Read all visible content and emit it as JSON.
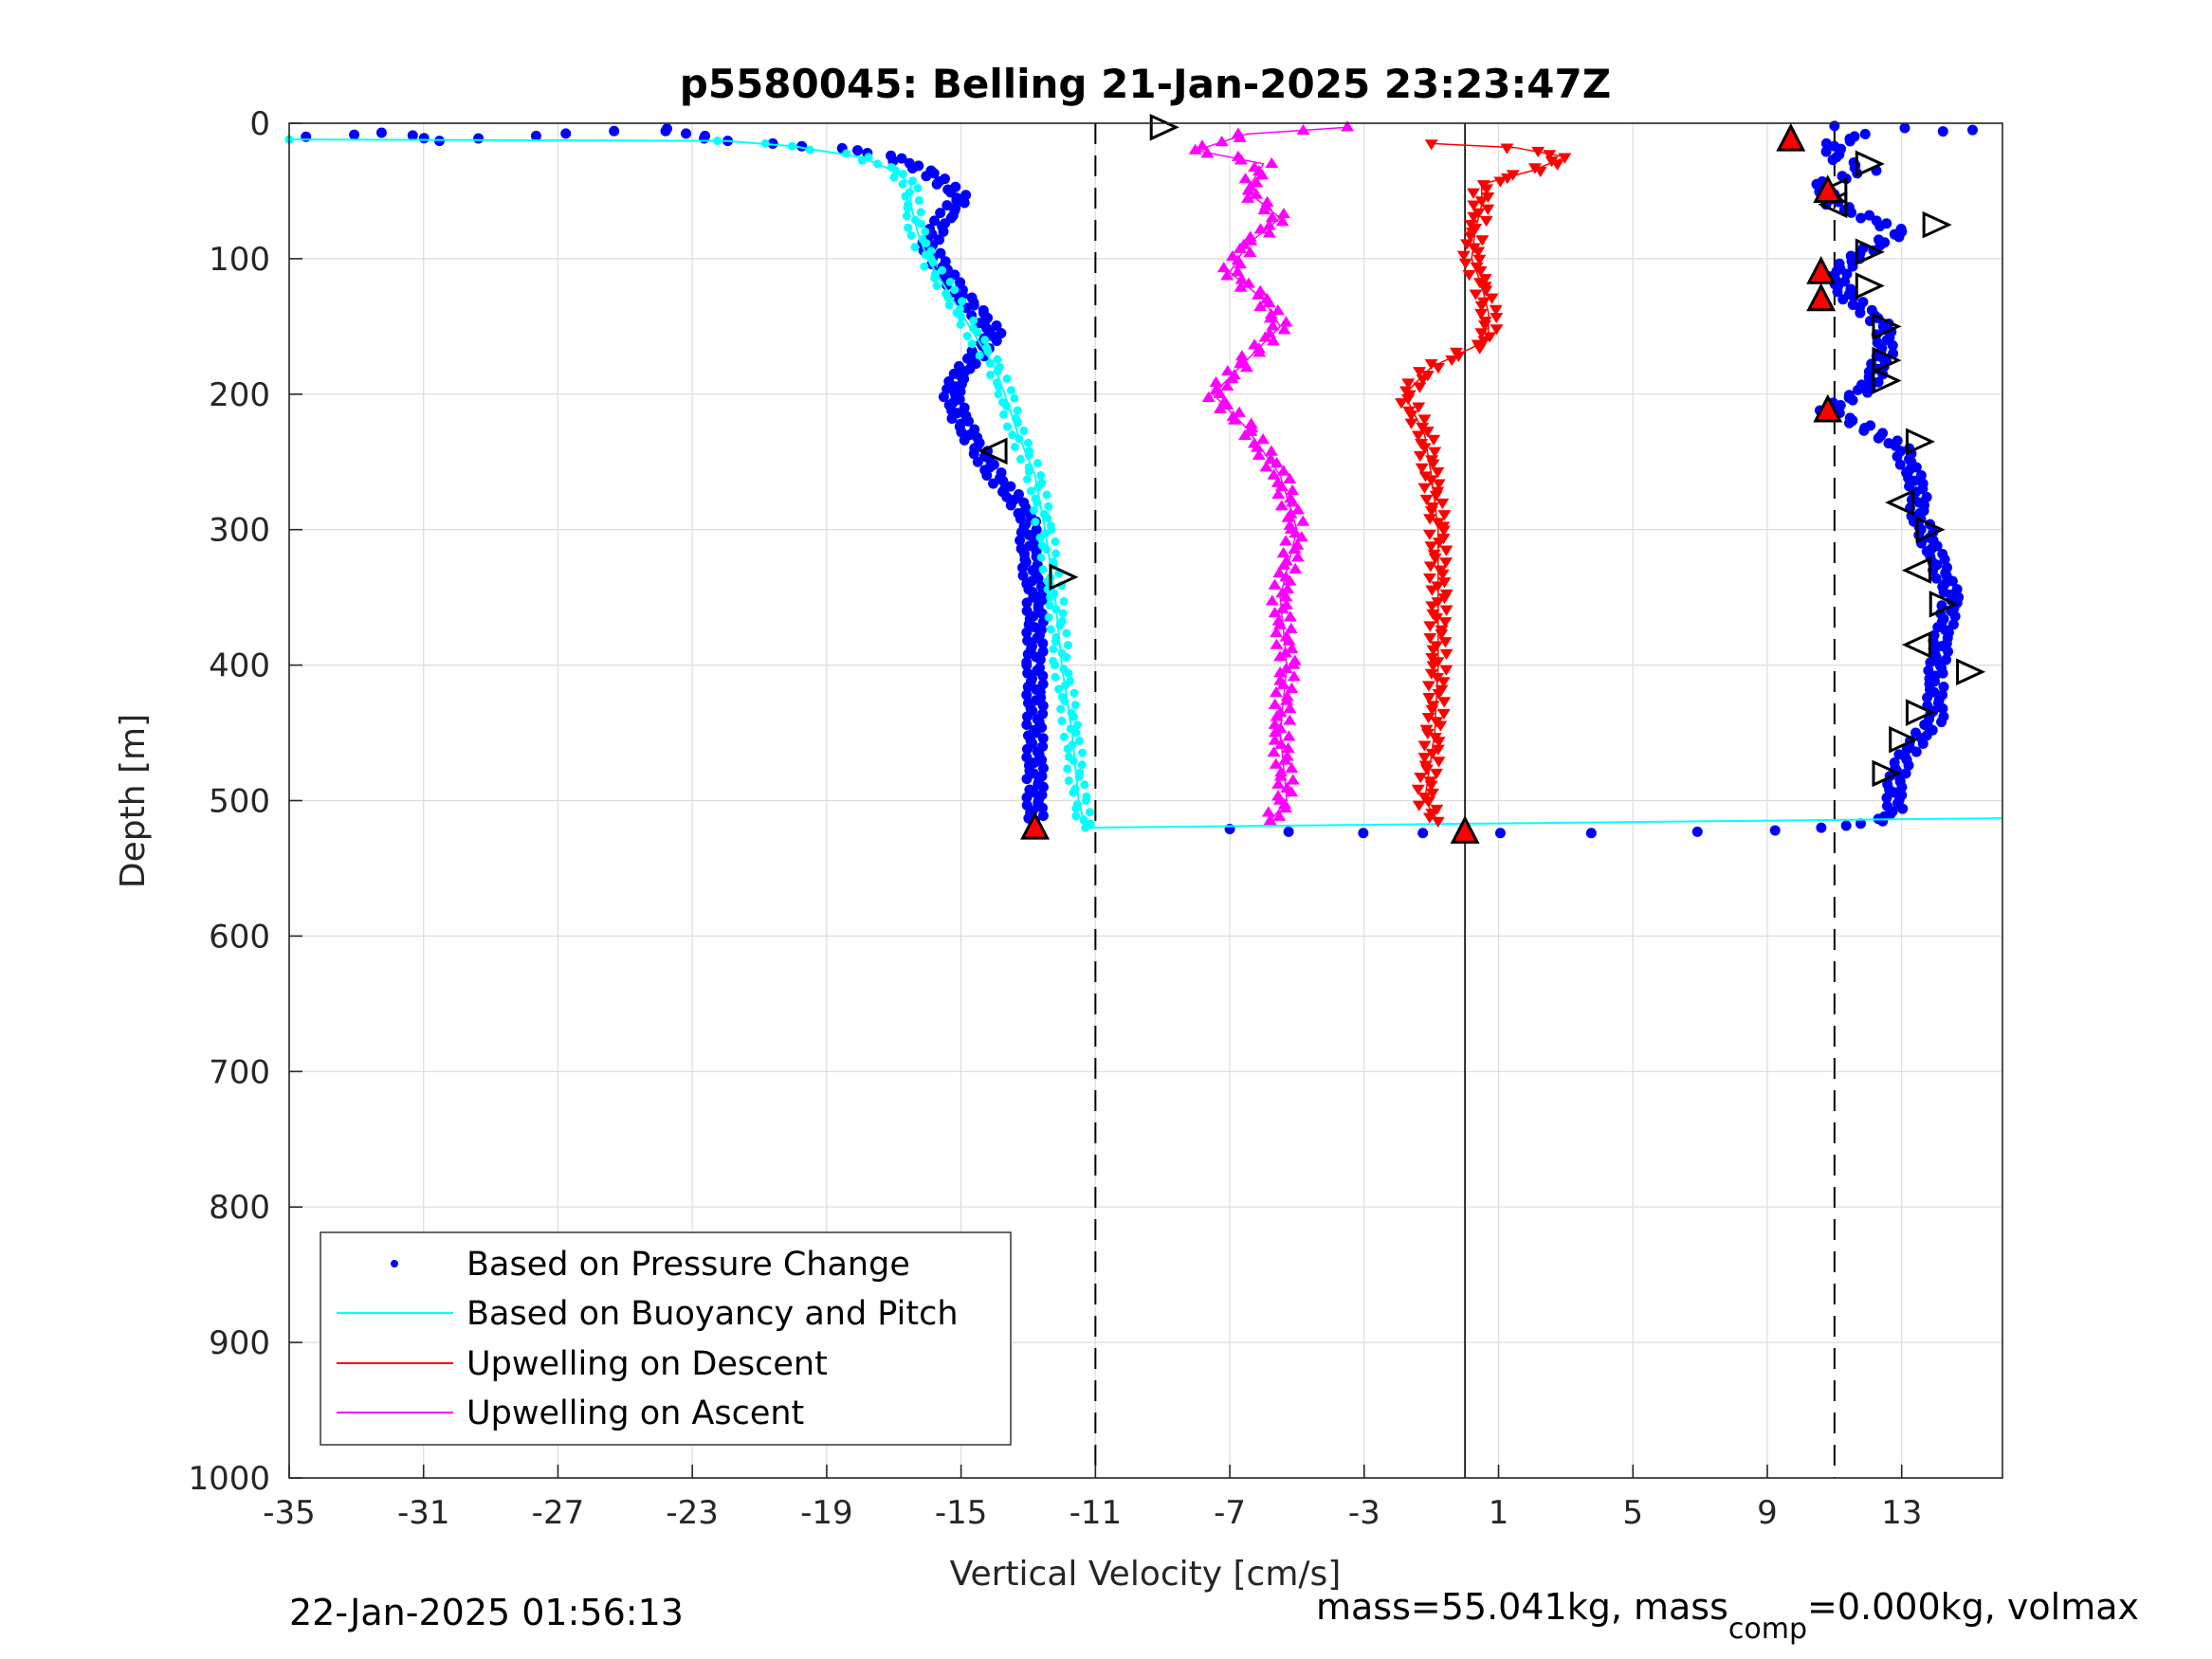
{
  "chart_data": {
    "type": "scatter",
    "title": "p5580045: Belling 21-Jan-2025 23:23:47Z",
    "xlabel": "Vertical Velocity [cm/s]",
    "ylabel": "Depth [m]",
    "xlim": [
      -35,
      16
    ],
    "ylim": [
      0,
      1000
    ],
    "y_reversed": true,
    "grid": true,
    "xticks": [
      -35,
      -31,
      -27,
      -23,
      -19,
      -15,
      -11,
      -7,
      -3,
      1,
      5,
      9,
      13
    ],
    "yticks": [
      0,
      100,
      200,
      300,
      400,
      500,
      600,
      700,
      800,
      900,
      1000
    ],
    "xtick_labels": [
      "-35",
      "-31",
      "-27",
      "-23",
      "-19",
      "-15",
      "-11",
      "-7",
      "-3",
      "1",
      "5",
      "9",
      "13"
    ],
    "ytick_labels": [
      "0",
      "100",
      "200",
      "300",
      "400",
      "500",
      "600",
      "700",
      "800",
      "900",
      "1000"
    ],
    "reference_lines": {
      "dashed_x": [
        -11,
        11
      ],
      "solid_x": [
        0
      ]
    },
    "legend": {
      "position": "bottom-left",
      "entries": [
        {
          "label": "Based on Pressure Change",
          "color": "#0000ff",
          "marker": "dot"
        },
        {
          "label": "Based on Buoyancy and Pitch",
          "color": "#00ffff",
          "marker": "line"
        },
        {
          "label": "Upwelling on Descent",
          "color": "#ff0000",
          "marker": "line"
        },
        {
          "label": "Upwelling on Ascent",
          "color": "#ff00ff",
          "marker": "line"
        }
      ]
    },
    "series": [
      {
        "name": "Based on Pressure Change (descent)",
        "color": "#0000ff",
        "marker": "dot",
        "points": [
          [
            -34.5,
            10
          ],
          [
            -32,
            7
          ],
          [
            -30.5,
            13
          ],
          [
            -24,
            4
          ],
          [
            -22,
            13
          ],
          [
            -19.5,
            17
          ],
          [
            -18,
            20
          ],
          [
            -17,
            26
          ],
          [
            -16,
            35
          ],
          [
            -15.5,
            45
          ],
          [
            -15,
            55
          ],
          [
            -15.5,
            70
          ],
          [
            -16,
            90
          ],
          [
            -15.5,
            110
          ],
          [
            -15,
            125
          ],
          [
            -14.5,
            140
          ],
          [
            -14,
            155
          ],
          [
            -14.5,
            170
          ],
          [
            -15,
            185
          ],
          [
            -15.3,
            200
          ],
          [
            -15,
            220
          ],
          [
            -14.5,
            240
          ],
          [
            -14,
            260
          ],
          [
            -13,
            290
          ],
          [
            -13,
            320
          ],
          [
            -12.8,
            350
          ],
          [
            -12.8,
            400
          ],
          [
            -12.8,
            450
          ],
          [
            -12.8,
            490
          ],
          [
            -12.8,
            515
          ]
        ]
      },
      {
        "name": "Based on Pressure Change (ascent)",
        "color": "#0000ff",
        "marker": "dot",
        "points": [
          [
            -7,
            521
          ],
          [
            -5,
            523
          ],
          [
            -3,
            524
          ],
          [
            -1.5,
            524
          ],
          [
            1,
            524
          ],
          [
            4,
            524
          ],
          [
            7,
            523
          ],
          [
            9,
            522
          ],
          [
            10.5,
            520
          ],
          [
            12,
            517
          ],
          [
            12.8,
            510
          ],
          [
            12.8,
            490
          ],
          [
            13,
            470
          ],
          [
            14,
            440
          ],
          [
            14,
            410
          ],
          [
            14.2,
            380
          ],
          [
            14.5,
            350
          ],
          [
            14,
            320
          ],
          [
            13.5,
            290
          ],
          [
            13.5,
            270
          ],
          [
            13,
            240
          ],
          [
            12,
            225
          ],
          [
            10.8,
            212
          ],
          [
            12,
            195
          ],
          [
            12.5,
            170
          ],
          [
            12.5,
            150
          ],
          [
            11.5,
            130
          ],
          [
            11,
            115
          ],
          [
            11.5,
            100
          ],
          [
            13,
            80
          ],
          [
            11,
            60
          ],
          [
            10.5,
            45
          ],
          [
            12,
            35
          ],
          [
            11,
            25
          ],
          [
            11,
            15
          ],
          [
            12,
            8
          ],
          [
            14,
            6
          ],
          [
            15,
            5
          ],
          [
            11,
            2
          ]
        ]
      },
      {
        "name": "Based on Buoyancy and Pitch",
        "color": "#00ffff",
        "marker": "line",
        "points": [
          [
            -35,
            12
          ],
          [
            -22,
            13
          ],
          [
            -20,
            17
          ],
          [
            -18,
            25
          ],
          [
            -17,
            35
          ],
          [
            -16.5,
            45
          ],
          [
            -16.5,
            60
          ],
          [
            -16.3,
            80
          ],
          [
            -16,
            100
          ],
          [
            -15.5,
            120
          ],
          [
            -15,
            140
          ],
          [
            -14.5,
            160
          ],
          [
            -14,
            180
          ],
          [
            -13.7,
            200
          ],
          [
            -13.3,
            230
          ],
          [
            -12.8,
            260
          ],
          [
            -12.5,
            300
          ],
          [
            -12.2,
            350
          ],
          [
            -12,
            400
          ],
          [
            -11.7,
            450
          ],
          [
            -11.5,
            500
          ],
          [
            -11.3,
            520
          ],
          [
            16,
            513
          ]
        ]
      },
      {
        "name": "Upwelling on Descent",
        "color": "#ff0000",
        "marker": "triangle-down",
        "points": [
          [
            -1,
            15
          ],
          [
            1.5,
            18
          ],
          [
            3,
            25
          ],
          [
            2,
            35
          ],
          [
            0.5,
            45
          ],
          [
            0.5,
            60
          ],
          [
            0.3,
            80
          ],
          [
            0.2,
            100
          ],
          [
            0.5,
            120
          ],
          [
            0.7,
            140
          ],
          [
            0.7,
            160
          ],
          [
            -1,
            180
          ],
          [
            -1.8,
            200
          ],
          [
            -1.2,
            230
          ],
          [
            -1,
            260
          ],
          [
            -0.8,
            300
          ],
          [
            -0.8,
            350
          ],
          [
            -0.8,
            400
          ],
          [
            -0.9,
            450
          ],
          [
            -1.2,
            500
          ],
          [
            -0.8,
            515
          ]
        ]
      },
      {
        "name": "Upwelling on Ascent",
        "color": "#ff00ff",
        "marker": "triangle-up",
        "points": [
          [
            -3.5,
            3
          ],
          [
            -6.5,
            8
          ],
          [
            -8,
            20
          ],
          [
            -6,
            30
          ],
          [
            -6.5,
            50
          ],
          [
            -5.5,
            70
          ],
          [
            -6.5,
            90
          ],
          [
            -7,
            110
          ],
          [
            -6,
            130
          ],
          [
            -5.5,
            150
          ],
          [
            -6.5,
            175
          ],
          [
            -7.5,
            200
          ],
          [
            -6.5,
            225
          ],
          [
            -5.5,
            260
          ],
          [
            -5,
            300
          ],
          [
            -5.5,
            350
          ],
          [
            -5.3,
            400
          ],
          [
            -5.5,
            450
          ],
          [
            -5.3,
            500
          ],
          [
            -5.8,
            515
          ]
        ]
      }
    ],
    "markers": {
      "open_right_triangles": [
        [
          -9,
          3
        ],
        [
          -12,
          335
        ],
        [
          12,
          30
        ],
        [
          14,
          75
        ],
        [
          12,
          95
        ],
        [
          12,
          120
        ],
        [
          12.5,
          150
        ],
        [
          12.5,
          175
        ],
        [
          12.5,
          190
        ],
        [
          13.5,
          235
        ],
        [
          13.8,
          300
        ],
        [
          14.2,
          355
        ],
        [
          15,
          405
        ],
        [
          13.5,
          435
        ],
        [
          13,
          455
        ],
        [
          12.5,
          480
        ]
      ],
      "open_left_triangles": [
        [
          -14,
          242
        ],
        [
          11,
          50
        ],
        [
          11,
          60
        ],
        [
          13,
          280
        ],
        [
          13.5,
          330
        ],
        [
          13.5,
          385
        ]
      ],
      "filled_red_up_triangles": [
        [
          -12.8,
          520
        ],
        [
          0,
          523
        ],
        [
          9.7,
          12
        ],
        [
          10.8,
          50
        ],
        [
          10.6,
          110
        ],
        [
          10.6,
          130
        ],
        [
          10.8,
          212
        ]
      ]
    }
  },
  "footer": {
    "left": "22-Jan-2025 01:56:13",
    "right_prefix": "mass=55.041kg, mass",
    "right_sub": "comp",
    "right_suffix": "=0.000kg, volmax"
  }
}
